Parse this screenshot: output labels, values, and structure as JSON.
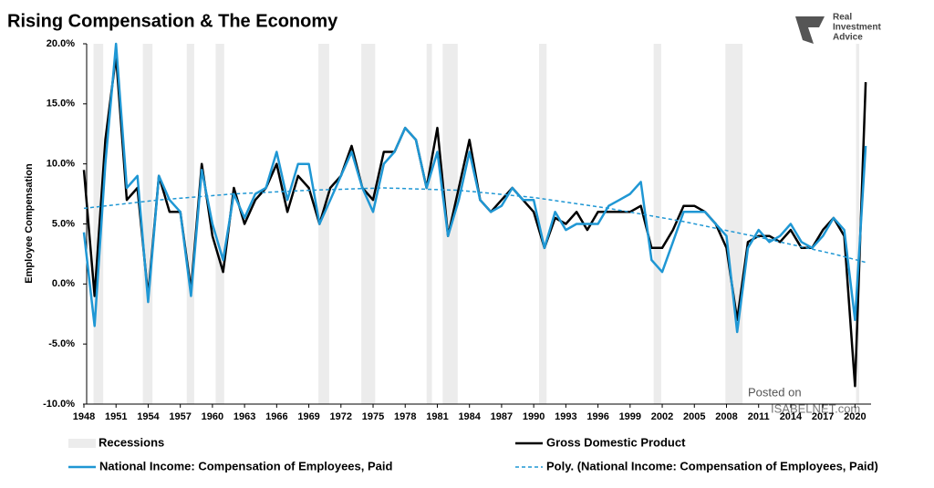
{
  "chart_data": {
    "type": "line",
    "title": "Rising Compensation & The Economy",
    "y_label": "Employee Compensation",
    "logo": [
      "Real",
      "Investment",
      "Advice"
    ],
    "watermark": [
      "Posted on",
      "ISABELNET.com"
    ],
    "xlim": [
      1948,
      2021.5
    ],
    "ylim": [
      -10,
      20
    ],
    "xticks": [
      1948,
      1951,
      1954,
      1957,
      1960,
      1963,
      1966,
      1969,
      1972,
      1975,
      1978,
      1981,
      1984,
      1987,
      1990,
      1993,
      1996,
      1999,
      2002,
      2005,
      2008,
      2011,
      2014,
      2017,
      2020
    ],
    "yticks": [
      {
        "value": -10,
        "label": "-10.0%"
      },
      {
        "value": -5,
        "label": "-5.0%"
      },
      {
        "value": 0,
        "label": "0.0%"
      },
      {
        "value": 5,
        "label": "5.0%"
      },
      {
        "value": 10,
        "label": "10.0%"
      },
      {
        "value": 15,
        "label": "15.0%"
      },
      {
        "value": 20,
        "label": "20.0%"
      }
    ],
    "grid": false,
    "recessions": {
      "name": "Recessions",
      "color": "#ececec",
      "ranges": [
        [
          1948.9,
          1949.8
        ],
        [
          1953.5,
          1954.4
        ],
        [
          1957.6,
          1958.3
        ],
        [
          1960.3,
          1961.1
        ],
        [
          1969.9,
          1970.9
        ],
        [
          1973.9,
          1975.2
        ],
        [
          1980.0,
          1980.5
        ],
        [
          1981.5,
          1982.9
        ],
        [
          1990.5,
          1991.2
        ],
        [
          2001.2,
          2001.9
        ],
        [
          2007.9,
          2009.5
        ],
        [
          2020.1,
          2020.4
        ]
      ]
    },
    "x": [
      1948,
      1949,
      1950,
      1951,
      1952,
      1953,
      1954,
      1955,
      1956,
      1957,
      1958,
      1959,
      1960,
      1961,
      1962,
      1963,
      1964,
      1965,
      1966,
      1967,
      1968,
      1969,
      1970,
      1971,
      1972,
      1973,
      1974,
      1975,
      1976,
      1977,
      1978,
      1979,
      1980,
      1981,
      1982,
      1983,
      1984,
      1985,
      1986,
      1987,
      1988,
      1989,
      1990,
      1991,
      1992,
      1993,
      1994,
      1995,
      1996,
      1997,
      1998,
      1999,
      2000,
      2001,
      2002,
      2003,
      2004,
      2005,
      2006,
      2007,
      2008,
      2009,
      2010,
      2011,
      2012,
      2013,
      2014,
      2015,
      2016,
      2017,
      2018,
      2019,
      2020,
      2021
    ],
    "series": [
      {
        "name": "Gross Domestic Product",
        "color": "#000000",
        "dashed": false,
        "values": [
          9.5,
          -1,
          12,
          19,
          7,
          8,
          -1,
          9,
          6,
          6,
          -0.5,
          10,
          4,
          1,
          8,
          5,
          7,
          8,
          10,
          6,
          9,
          8,
          5,
          8,
          9,
          11.5,
          8,
          7,
          11,
          11,
          13,
          12,
          8,
          13,
          4,
          8,
          12,
          7,
          6,
          7,
          8,
          7,
          6,
          3,
          5.5,
          5,
          6,
          4.5,
          6,
          6,
          6,
          6,
          6.5,
          3,
          3,
          4.5,
          6.5,
          6.5,
          6,
          5,
          3,
          -3,
          3.5,
          4,
          4,
          3.5,
          4.5,
          3,
          3,
          4.5,
          5.5,
          4,
          -8.5,
          16.8
        ]
      },
      {
        "name": "National Income: Compensation of Employees, Paid",
        "color": "#1f97d4",
        "dashed": false,
        "values": [
          4.3,
          -3.5,
          10,
          20,
          8,
          9,
          -1.5,
          9,
          7,
          6,
          -1,
          9.5,
          5,
          2,
          7.5,
          5.5,
          7.5,
          8,
          11,
          7,
          10,
          10,
          5,
          7,
          9,
          11,
          8,
          6,
          10,
          11,
          13,
          12,
          8,
          11,
          4,
          7,
          11,
          7,
          6,
          6.5,
          8,
          7,
          7,
          3,
          6,
          4.5,
          5,
          5,
          5,
          6.5,
          7,
          7.5,
          8.5,
          2,
          1,
          3.5,
          6,
          6,
          6,
          5,
          4,
          -4,
          3,
          4.5,
          3.5,
          4,
          5,
          3.5,
          3,
          4,
          5.5,
          4.5,
          -3,
          11.5
        ]
      },
      {
        "name": "Poly. (National Income: Compensation of Employees, Paid)",
        "color": "#1f97d4",
        "dashed": true,
        "x": [
          1948,
          1955,
          1962,
          1969,
          1976,
          1983,
          1990,
          1997,
          2004,
          2011,
          2018,
          2021
        ],
        "values": [
          6.3,
          7.0,
          7.5,
          7.8,
          8.0,
          7.8,
          7.2,
          6.3,
          5.2,
          3.9,
          2.5,
          1.8
        ]
      }
    ]
  }
}
